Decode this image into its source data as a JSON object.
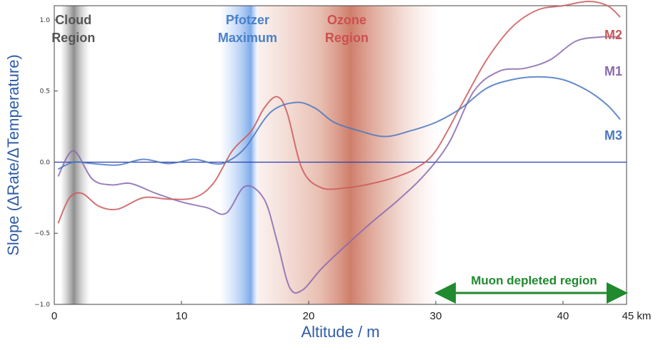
{
  "chart_data": {
    "type": "line",
    "title": "",
    "xlabel": "Altitude / m",
    "ylabel": "Slope (ΔRate/ΔTemperature)",
    "xlim": [
      0,
      45
    ],
    "ylim": [
      -1.0,
      1.1
    ],
    "x_ticks": [
      "0",
      "10",
      "20",
      "30",
      "40",
      "45 km"
    ],
    "x_tick_values": [
      0,
      10,
      20,
      30,
      40,
      45
    ],
    "y_ticks": [
      "−1.0",
      "−0.5",
      "0.0",
      "0.5",
      "1.0"
    ],
    "y_tick_values": [
      -1.0,
      -0.5,
      0.0,
      0.5,
      1.0
    ],
    "colors": {
      "M1": "#8a6ab0",
      "M2": "#cc5a5a",
      "M3": "#4a78bf",
      "zero_line": "#2a3eb0",
      "cloud": "#9a9a9a",
      "pfotzer": "#6a9de8",
      "ozone": "#c9705a",
      "arrow": "#1f8a2e"
    },
    "bands": [
      {
        "name": "cloud",
        "label_lines": [
          "Cloud",
          "Region"
        ],
        "x_range": [
          0.5,
          2.8
        ],
        "center": 1.5,
        "color": "#8c8c8c",
        "label_color": "#555555"
      },
      {
        "name": "pfotzer",
        "label_lines": [
          "Pfotzer",
          "Maximum"
        ],
        "x_range": [
          13.0,
          16.0
        ],
        "center": 15.2,
        "color": "#5a8fe6",
        "label_color": "#4a80c8"
      },
      {
        "name": "ozone",
        "label_lines": [
          "Ozone",
          "Region"
        ],
        "x_range": [
          16.0,
          30.0
        ],
        "center": 23.0,
        "color": "#c46a55",
        "label_color": "#cc5050"
      }
    ],
    "series": [
      {
        "name": "M1",
        "label": "M1",
        "x": [
          0.3,
          1.5,
          3,
          4.5,
          6,
          8,
          10,
          12,
          13.5,
          15,
          16.5,
          17.5,
          18.5,
          19.5,
          21,
          23,
          25,
          27,
          29,
          31,
          33,
          35,
          37,
          39,
          41,
          43,
          44.5
        ],
        "y": [
          -0.1,
          0.08,
          -0.12,
          -0.16,
          -0.15,
          -0.22,
          -0.28,
          -0.32,
          -0.36,
          -0.17,
          -0.26,
          -0.55,
          -0.88,
          -0.9,
          -0.75,
          -0.58,
          -0.42,
          -0.27,
          -0.1,
          0.13,
          0.5,
          0.64,
          0.66,
          0.72,
          0.85,
          0.88,
          0.88
        ]
      },
      {
        "name": "M2",
        "label": "M2",
        "x": [
          0.3,
          1.2,
          2.2,
          3.5,
          5,
          7,
          9,
          11,
          12.5,
          14,
          15.5,
          16.5,
          17.5,
          18.3,
          19.5,
          21,
          23,
          25,
          27,
          28.5,
          30,
          32,
          34,
          36,
          38,
          40,
          42,
          43.5,
          44.5
        ],
        "y": [
          -0.43,
          -0.25,
          -0.22,
          -0.31,
          -0.33,
          -0.25,
          -0.26,
          -0.25,
          -0.15,
          0.08,
          0.22,
          0.38,
          0.46,
          0.35,
          -0.05,
          -0.18,
          -0.18,
          -0.15,
          -0.1,
          -0.04,
          0.08,
          0.4,
          0.72,
          0.95,
          1.07,
          1.1,
          1.13,
          1.1,
          1.02
        ]
      },
      {
        "name": "M3",
        "label": "M3",
        "x": [
          0.3,
          1.5,
          3,
          5,
          7,
          9,
          11,
          12.5,
          13.5,
          15,
          17,
          19,
          20.5,
          22,
          24,
          26,
          28,
          30,
          32,
          34,
          36,
          38,
          40,
          42,
          43.5,
          44.5
        ],
        "y": [
          -0.05,
          0.0,
          -0.01,
          -0.02,
          0.02,
          -0.01,
          0.02,
          -0.01,
          0.0,
          0.1,
          0.35,
          0.42,
          0.38,
          0.28,
          0.22,
          0.18,
          0.22,
          0.28,
          0.38,
          0.52,
          0.58,
          0.6,
          0.58,
          0.5,
          0.4,
          0.3
        ]
      }
    ],
    "annotation": {
      "text": "Muon depleted region",
      "x_range": [
        30,
        45
      ]
    }
  }
}
